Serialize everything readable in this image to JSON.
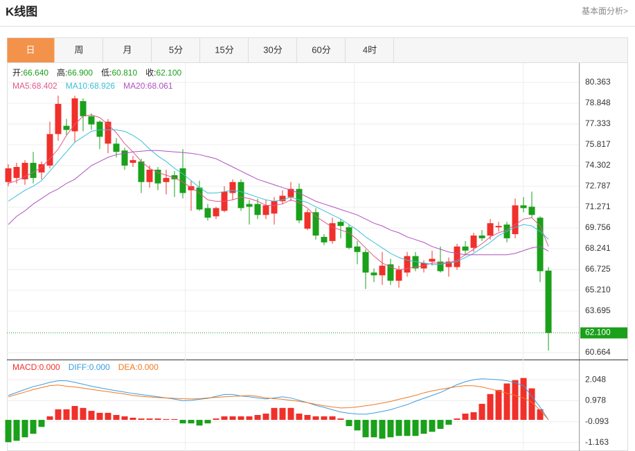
{
  "page": {
    "title": "K线图",
    "link": "基本面分析>",
    "tabs": [
      "日",
      "周",
      "月",
      "5分",
      "15分",
      "30分",
      "60分",
      "4时"
    ],
    "active_tab": 0
  },
  "chart_data": [
    {
      "type": "candlestick",
      "info": [
        {
          "label": "开:",
          "value": "66.640"
        },
        {
          "label": "高:",
          "value": "66.900"
        },
        {
          "label": "低:",
          "value": "60.810"
        },
        {
          "label": "收:",
          "value": "62.100"
        }
      ],
      "open": [
        73.1,
        73.4,
        73.3,
        74.5,
        73.8,
        74.3,
        76.6,
        77.2,
        76.8,
        79.0,
        77.9,
        77.5,
        75.9,
        75.9,
        75.4,
        74.5,
        74.6,
        73.1,
        74.0,
        73.1,
        73.6,
        74.1,
        72.5,
        72.7,
        71.2,
        70.6,
        71.0,
        72.3,
        73.1,
        71.5,
        71.5,
        70.7,
        70.8,
        71.7,
        72.0,
        72.6,
        69.7,
        70.9,
        69.1,
        68.8,
        70.2,
        69.8,
        68.4,
        68.0,
        66.5,
        66.3,
        67.1,
        65.9,
        66.5,
        67.7,
        66.8,
        67.3,
        67.3,
        66.9,
        66.9,
        68.4,
        68.3,
        69.2,
        69.2,
        69.8,
        70.0,
        69.3,
        71.4,
        71.3,
        70.5,
        66.64
      ],
      "high": [
        74.4,
        74.5,
        74.7,
        75.3,
        74.6,
        77.5,
        79.4,
        77.7,
        79.4,
        79.2,
        78.1,
        77.6,
        77.7,
        76.3,
        75.6,
        75.0,
        74.8,
        74.3,
        74.2,
        74.0,
        73.9,
        75.5,
        73.2,
        73.2,
        71.5,
        71.3,
        72.8,
        73.3,
        73.3,
        71.8,
        71.9,
        71.8,
        72.0,
        72.5,
        73.1,
        73.0,
        71.1,
        71.2,
        69.3,
        70.5,
        70.4,
        70.0,
        68.8,
        68.2,
        66.8,
        68.0,
        67.5,
        67.0,
        68.0,
        68.0,
        67.4,
        68.1,
        68.4,
        67.6,
        68.6,
        68.8,
        69.4,
        69.6,
        70.4,
        70.2,
        70.2,
        71.9,
        72.0,
        72.4,
        70.6,
        66.9
      ],
      "low": [
        72.8,
        73.0,
        72.9,
        73.0,
        73.3,
        74.1,
        76.1,
        76.5,
        76.0,
        76.8,
        76.9,
        75.5,
        75.2,
        74.9,
        74.0,
        74.2,
        72.3,
        72.7,
        72.5,
        72.2,
        72.0,
        71.9,
        71.0,
        71.0,
        70.3,
        70.4,
        70.9,
        71.8,
        71.0,
        70.0,
        70.4,
        70.4,
        70.0,
        71.5,
        71.7,
        70.1,
        69.6,
        68.9,
        68.5,
        68.6,
        69.0,
        68.2,
        67.1,
        65.3,
        65.8,
        65.6,
        65.6,
        65.4,
        66.2,
        66.6,
        66.5,
        67.0,
        66.5,
        66.2,
        66.7,
        67.8,
        68.0,
        68.8,
        68.9,
        69.5,
        68.7,
        69.0,
        70.9,
        70.5,
        65.8,
        60.81
      ],
      "close": [
        74.1,
        74.2,
        74.5,
        73.4,
        74.4,
        76.6,
        78.8,
        76.9,
        79.2,
        77.9,
        77.3,
        76.4,
        77.5,
        75.3,
        74.3,
        74.7,
        73.1,
        74.0,
        73.0,
        73.4,
        73.3,
        72.3,
        72.8,
        71.1,
        70.5,
        71.2,
        72.4,
        73.1,
        71.2,
        71.3,
        70.7,
        71.4,
        71.7,
        72.1,
        72.6,
        70.3,
        70.9,
        69.2,
        68.7,
        70.1,
        69.9,
        68.3,
        68.0,
        66.5,
        66.3,
        67.0,
        65.9,
        66.7,
        67.7,
        66.8,
        67.2,
        67.5,
        66.6,
        67.3,
        68.4,
        68.1,
        69.2,
        69.0,
        70.1,
        69.9,
        69.0,
        71.4,
        71.2,
        70.7,
        66.6,
        62.1
      ],
      "up_color": "#f0302a",
      "down_color": "#1aa01a",
      "series": [
        {
          "name": "MA5:",
          "label": "68.402",
          "color": "#e0588b",
          "values": [
            73.0,
            73.2,
            73.5,
            73.8,
            74.2,
            74.8,
            75.5,
            76.5,
            77.3,
            77.9,
            78.0,
            77.8,
            77.3,
            76.7,
            75.9,
            75.3,
            74.6,
            74.1,
            73.8,
            73.6,
            73.4,
            73.1,
            72.7,
            72.3,
            71.8,
            71.7,
            71.7,
            71.8,
            72.0,
            71.9,
            71.7,
            71.4,
            71.4,
            71.5,
            71.8,
            71.6,
            71.2,
            70.6,
            70.2,
            69.8,
            69.6,
            69.4,
            68.9,
            68.3,
            67.7,
            67.2,
            66.9,
            66.7,
            66.8,
            66.9,
            67.0,
            67.2,
            67.2,
            67.2,
            67.4,
            67.8,
            68.2,
            68.6,
            69.1,
            69.4,
            69.6,
            70.0,
            70.4,
            70.5,
            69.9,
            68.402
          ]
        },
        {
          "name": "MA10:",
          "label": "68.926",
          "color": "#3bbfd9",
          "values": [
            71.7,
            72.1,
            72.5,
            72.8,
            73.2,
            73.9,
            74.6,
            75.3,
            76.0,
            76.4,
            76.8,
            76.9,
            76.9,
            76.9,
            76.8,
            76.5,
            76.1,
            75.5,
            75.0,
            74.6,
            74.1,
            73.7,
            73.2,
            72.7,
            72.3,
            72.3,
            72.4,
            72.5,
            72.4,
            72.2,
            72.0,
            71.8,
            71.7,
            71.8,
            72.0,
            71.8,
            71.6,
            71.3,
            71.0,
            70.7,
            70.4,
            70.0,
            69.6,
            69.1,
            68.7,
            68.3,
            67.9,
            67.6,
            67.4,
            67.3,
            67.2,
            67.1,
            67.1,
            67.2,
            67.3,
            67.6,
            67.9,
            68.3,
            68.7,
            69.2,
            69.5,
            69.8,
            70.0,
            69.9,
            69.5,
            68.926
          ]
        },
        {
          "name": "MA20:",
          "label": "68.061",
          "color": "#b050c0",
          "values": [
            70.0,
            70.6,
            71.0,
            71.5,
            71.9,
            72.3,
            72.6,
            73.0,
            73.3,
            73.8,
            74.3,
            74.6,
            74.9,
            75.1,
            75.2,
            75.3,
            75.35,
            75.4,
            75.4,
            75.35,
            75.3,
            75.25,
            75.2,
            75.1,
            74.95,
            74.8,
            74.5,
            74.2,
            73.9,
            73.6,
            73.3,
            73.1,
            72.9,
            72.7,
            72.5,
            72.3,
            72.0,
            71.7,
            71.5,
            71.3,
            71.1,
            70.9,
            70.7,
            70.4,
            70.1,
            69.9,
            69.6,
            69.4,
            69.1,
            68.9,
            68.7,
            68.4,
            68.2,
            68.0,
            67.9,
            67.8,
            67.8,
            67.8,
            67.8,
            67.8,
            67.8,
            67.9,
            68.1,
            68.3,
            68.4,
            68.061
          ]
        }
      ],
      "ylim": [
        60.207,
        81.727
      ],
      "yticks": [
        80.363,
        78.848,
        77.333,
        75.817,
        74.302,
        72.787,
        71.271,
        69.756,
        68.241,
        66.725,
        {
          "value": 65.21,
          "label": "65.210"
        },
        63.695,
        60.664
      ],
      "last_price": {
        "value": 62.1,
        "label": "62.100"
      },
      "grid": true
    },
    {
      "type": "macd",
      "histogram": {
        "name": "MACD:",
        "label": "0.000",
        "up_color": "#f0302a",
        "down_color": "#1aa01a",
        "values": [
          -1.14,
          -1.07,
          -0.89,
          -0.71,
          -0.36,
          0.18,
          0.54,
          0.54,
          0.71,
          0.61,
          0.46,
          0.36,
          0.36,
          0.25,
          0.18,
          0.11,
          0.07,
          0.07,
          0.07,
          0.04,
          0.04,
          -0.18,
          -0.18,
          -0.29,
          -0.18,
          0.07,
          0.18,
          0.18,
          0.18,
          0.18,
          0.25,
          0.32,
          0.61,
          0.61,
          0.61,
          0.32,
          0.25,
          0.18,
          0.18,
          0.18,
          0.07,
          -0.32,
          -0.54,
          -0.89,
          -0.89,
          -0.96,
          -0.89,
          -0.82,
          -0.82,
          -0.82,
          -0.71,
          -0.61,
          -0.46,
          -0.25,
          0.07,
          0.32,
          0.39,
          0.82,
          1.32,
          1.53,
          1.86,
          2.03,
          2.14,
          1.61,
          0.54,
          0
        ]
      },
      "series": [
        {
          "name": "DIFF:",
          "label": "0.000",
          "color": "#3a9ce0",
          "values": [
            1.25,
            1.4,
            1.55,
            1.7,
            1.8,
            1.92,
            2.0,
            2.0,
            1.92,
            1.82,
            1.72,
            1.64,
            1.56,
            1.49,
            1.42,
            1.35,
            1.29,
            1.24,
            1.18,
            1.12,
            1.06,
            0.98,
            1.0,
            1.05,
            1.1,
            1.2,
            1.3,
            1.3,
            1.22,
            1.18,
            1.12,
            1.07,
            1.12,
            1.18,
            1.12,
            1.0,
            0.88,
            0.74,
            0.64,
            0.52,
            0.4,
            0.34,
            0.3,
            0.29,
            0.35,
            0.43,
            0.52,
            0.65,
            0.78,
            0.95,
            1.1,
            1.25,
            1.4,
            1.6,
            1.8,
            1.95,
            2.05,
            2.1,
            2.08,
            2.05,
            2.0,
            1.9,
            1.75,
            1.2,
            0.65,
            0
          ]
        },
        {
          "name": "DEA:",
          "label": "0.000",
          "color": "#f07820",
          "values": [
            1.18,
            1.3,
            1.42,
            1.55,
            1.65,
            1.75,
            1.78,
            1.72,
            1.68,
            1.62,
            1.56,
            1.5,
            1.44,
            1.38,
            1.32,
            1.25,
            1.2,
            1.17,
            1.14,
            1.12,
            1.1,
            1.08,
            1.07,
            1.08,
            1.12,
            1.15,
            1.18,
            1.2,
            1.22,
            1.25,
            1.2,
            1.12,
            1.08,
            1.05,
            1.0,
            0.95,
            0.88,
            0.8,
            0.72,
            0.66,
            0.61,
            0.62,
            0.66,
            0.72,
            0.78,
            0.86,
            0.94,
            1.05,
            1.15,
            1.25,
            1.38,
            1.48,
            1.56,
            1.63,
            1.7,
            1.75,
            1.74,
            1.68,
            1.58,
            1.48,
            1.36,
            1.25,
            1.12,
            0.9,
            0.5,
            0
          ]
        }
      ],
      "ylim": [
        -1.591,
        3.047
      ],
      "yticks": [
        2.048,
        0.978,
        -0.093,
        -1.163
      ],
      "grid": true
    }
  ]
}
